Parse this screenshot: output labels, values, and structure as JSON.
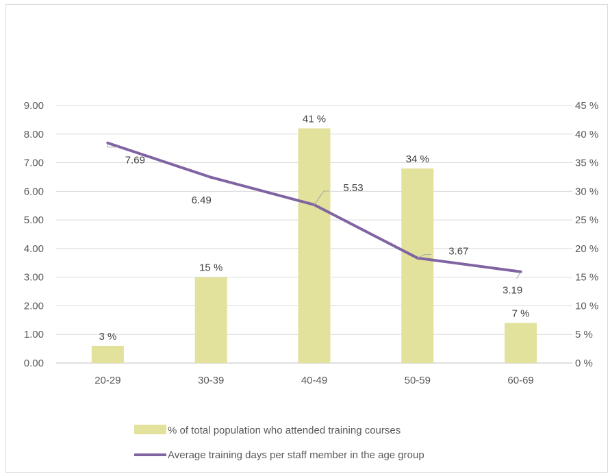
{
  "chart_data": {
    "type": "bar",
    "categories": [
      "20-29",
      "30-39",
      "40-49",
      "50-59",
      "60-69"
    ],
    "series": [
      {
        "name": "% of total population who attended training courses",
        "kind": "bar",
        "axis": "right",
        "values": [
          3,
          15,
          41,
          34,
          7
        ],
        "labels": [
          "3 %",
          "15 %",
          "41 %",
          "34 %",
          "7 %"
        ],
        "color": "#e2e29c"
      },
      {
        "name": "Average training days per staff member in the age group",
        "kind": "line",
        "axis": "left",
        "values": [
          7.69,
          6.49,
          5.53,
          3.67,
          3.19
        ],
        "labels": [
          "7.69",
          "6.49",
          "5.53",
          "3.67",
          "3.19"
        ],
        "color": "#8064a2"
      }
    ],
    "y_left": {
      "ylim": [
        0,
        9
      ],
      "ticks": [
        "0.00",
        "1.00",
        "2.00",
        "3.00",
        "4.00",
        "5.00",
        "6.00",
        "7.00",
        "8.00",
        "9.00"
      ]
    },
    "y_right": {
      "ylim": [
        0,
        45
      ],
      "ticks": [
        "0 %",
        "5 %",
        "10 %",
        "15 %",
        "20 %",
        "25 %",
        "30 %",
        "35 %",
        "40 %",
        "45 %"
      ]
    },
    "grid": true,
    "legend_position": "bottom"
  }
}
